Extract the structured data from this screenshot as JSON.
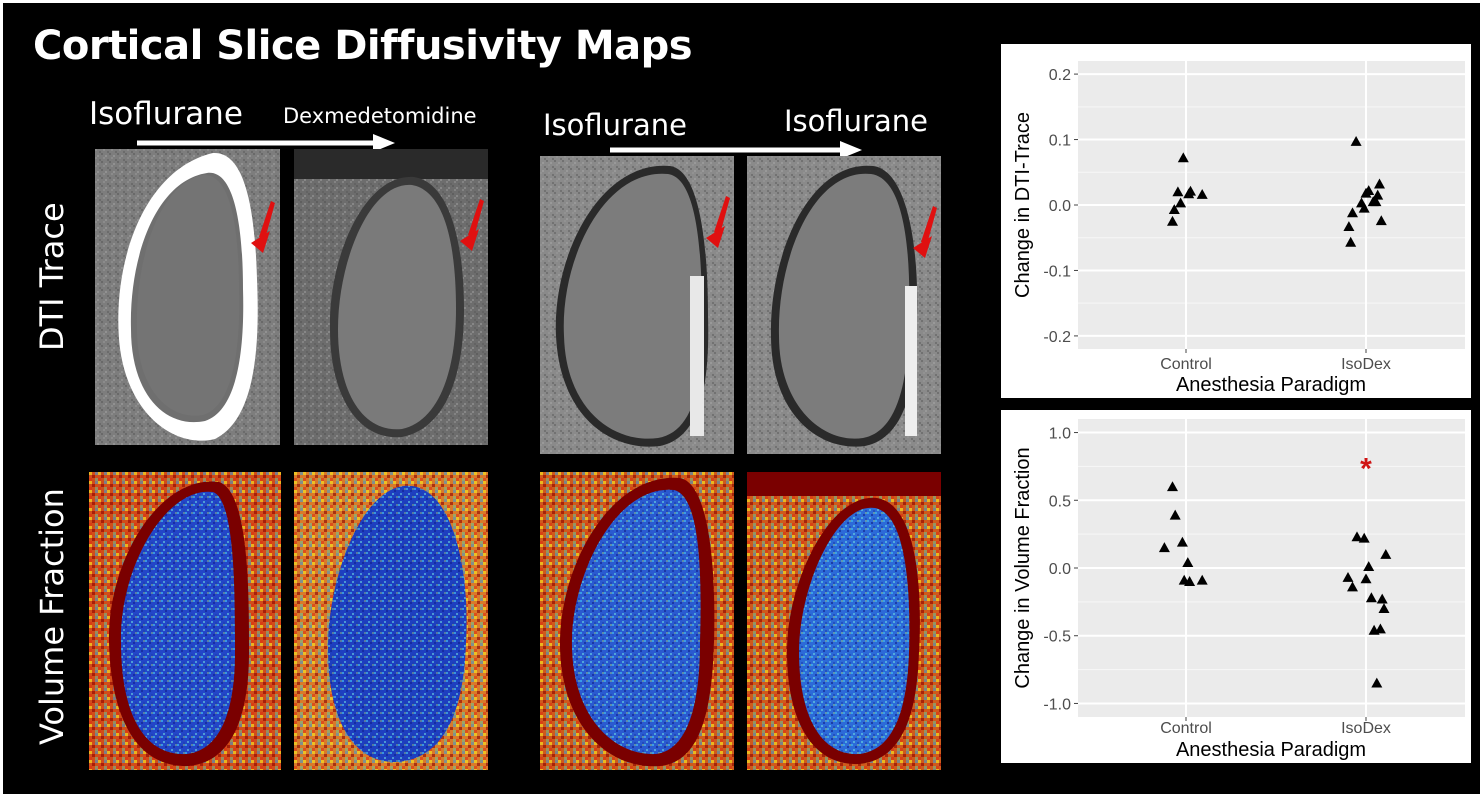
{
  "title": "Cortical Slice Diffusivity Maps",
  "labels": {
    "left_start": "Isoflurane",
    "left_end": "Dexmedetomidine",
    "right_start": "Isoflurane",
    "right_end": "Isoflurane"
  },
  "row_labels": {
    "dti": "DTI Trace",
    "vf": "Volume Fraction"
  },
  "colors": {
    "background": "#000000",
    "arrow_red": "#e01010",
    "plot_panel": "#ebebeb",
    "significance": "#d01515"
  },
  "chart_data": [
    {
      "type": "scatter",
      "xlabel": "Anesthesia Paradigm",
      "ylabel": "Change in DTI-Trace",
      "categories": [
        "Control",
        "IsoDex"
      ],
      "ylim": [
        -0.22,
        0.22
      ],
      "yticks": [
        -0.2,
        -0.1,
        0.0,
        0.1,
        0.2
      ],
      "ytick_labels": [
        "-0.2",
        "-0.1",
        "0.0",
        "0.1",
        "0.2"
      ],
      "grid": true,
      "series": [
        {
          "marker": "triangle",
          "points": [
            {
              "group": "Control",
              "dx": -0.15,
              "y": -0.025
            },
            {
              "group": "Control",
              "dx": -0.13,
              "y": -0.007
            },
            {
              "group": "Control",
              "dx": -0.09,
              "y": 0.02
            },
            {
              "group": "Control",
              "dx": -0.06,
              "y": 0.003
            },
            {
              "group": "Control",
              "dx": -0.03,
              "y": 0.072
            },
            {
              "group": "Control",
              "dx": 0.03,
              "y": 0.017
            },
            {
              "group": "Control",
              "dx": 0.05,
              "y": 0.021
            },
            {
              "group": "Control",
              "dx": 0.18,
              "y": 0.016
            },
            {
              "group": "IsoDex",
              "dx": -0.19,
              "y": -0.033
            },
            {
              "group": "IsoDex",
              "dx": -0.17,
              "y": -0.057
            },
            {
              "group": "IsoDex",
              "dx": -0.15,
              "y": -0.012
            },
            {
              "group": "IsoDex",
              "dx": -0.11,
              "y": 0.097
            },
            {
              "group": "IsoDex",
              "dx": -0.05,
              "y": 0.003
            },
            {
              "group": "IsoDex",
              "dx": -0.02,
              "y": -0.005
            },
            {
              "group": "IsoDex",
              "dx": 0.0,
              "y": 0.018
            },
            {
              "group": "IsoDex",
              "dx": 0.03,
              "y": 0.022
            },
            {
              "group": "IsoDex",
              "dx": 0.08,
              "y": 0.005
            },
            {
              "group": "IsoDex",
              "dx": 0.11,
              "y": 0.005
            },
            {
              "group": "IsoDex",
              "dx": 0.13,
              "y": 0.015
            },
            {
              "group": "IsoDex",
              "dx": 0.15,
              "y": 0.032
            },
            {
              "group": "IsoDex",
              "dx": 0.17,
              "y": -0.024
            }
          ]
        }
      ]
    },
    {
      "type": "scatter",
      "xlabel": "Anesthesia Paradigm",
      "ylabel": "Change in Volume Fraction",
      "categories": [
        "Control",
        "IsoDex"
      ],
      "ylim": [
        -1.1,
        1.1
      ],
      "yticks": [
        -1.0,
        -0.5,
        0.0,
        0.5,
        1.0
      ],
      "ytick_labels": [
        "-1.0",
        "-0.5",
        "0.0",
        "0.5",
        "1.0"
      ],
      "grid": true,
      "annotation": {
        "text": "*",
        "group": "IsoDex",
        "dx": 0.0,
        "y": 0.75
      },
      "series": [
        {
          "marker": "triangle",
          "points": [
            {
              "group": "Control",
              "dx": -0.24,
              "y": 0.15
            },
            {
              "group": "Control",
              "dx": -0.15,
              "y": 0.6
            },
            {
              "group": "Control",
              "dx": -0.12,
              "y": 0.39
            },
            {
              "group": "Control",
              "dx": -0.04,
              "y": 0.19
            },
            {
              "group": "Control",
              "dx": -0.02,
              "y": -0.09
            },
            {
              "group": "Control",
              "dx": 0.02,
              "y": 0.04
            },
            {
              "group": "Control",
              "dx": 0.04,
              "y": -0.1
            },
            {
              "group": "Control",
              "dx": 0.18,
              "y": -0.09
            },
            {
              "group": "IsoDex",
              "dx": -0.2,
              "y": -0.07
            },
            {
              "group": "IsoDex",
              "dx": -0.15,
              "y": -0.14
            },
            {
              "group": "IsoDex",
              "dx": -0.1,
              "y": 0.23
            },
            {
              "group": "IsoDex",
              "dx": -0.02,
              "y": 0.22
            },
            {
              "group": "IsoDex",
              "dx": 0.0,
              "y": -0.08
            },
            {
              "group": "IsoDex",
              "dx": 0.03,
              "y": 0.01
            },
            {
              "group": "IsoDex",
              "dx": 0.06,
              "y": -0.22
            },
            {
              "group": "IsoDex",
              "dx": 0.09,
              "y": -0.46
            },
            {
              "group": "IsoDex",
              "dx": 0.12,
              "y": -0.85
            },
            {
              "group": "IsoDex",
              "dx": 0.16,
              "y": -0.45
            },
            {
              "group": "IsoDex",
              "dx": 0.18,
              "y": -0.23
            },
            {
              "group": "IsoDex",
              "dx": 0.2,
              "y": -0.3
            },
            {
              "group": "IsoDex",
              "dx": 0.22,
              "y": 0.1
            }
          ]
        }
      ]
    }
  ]
}
